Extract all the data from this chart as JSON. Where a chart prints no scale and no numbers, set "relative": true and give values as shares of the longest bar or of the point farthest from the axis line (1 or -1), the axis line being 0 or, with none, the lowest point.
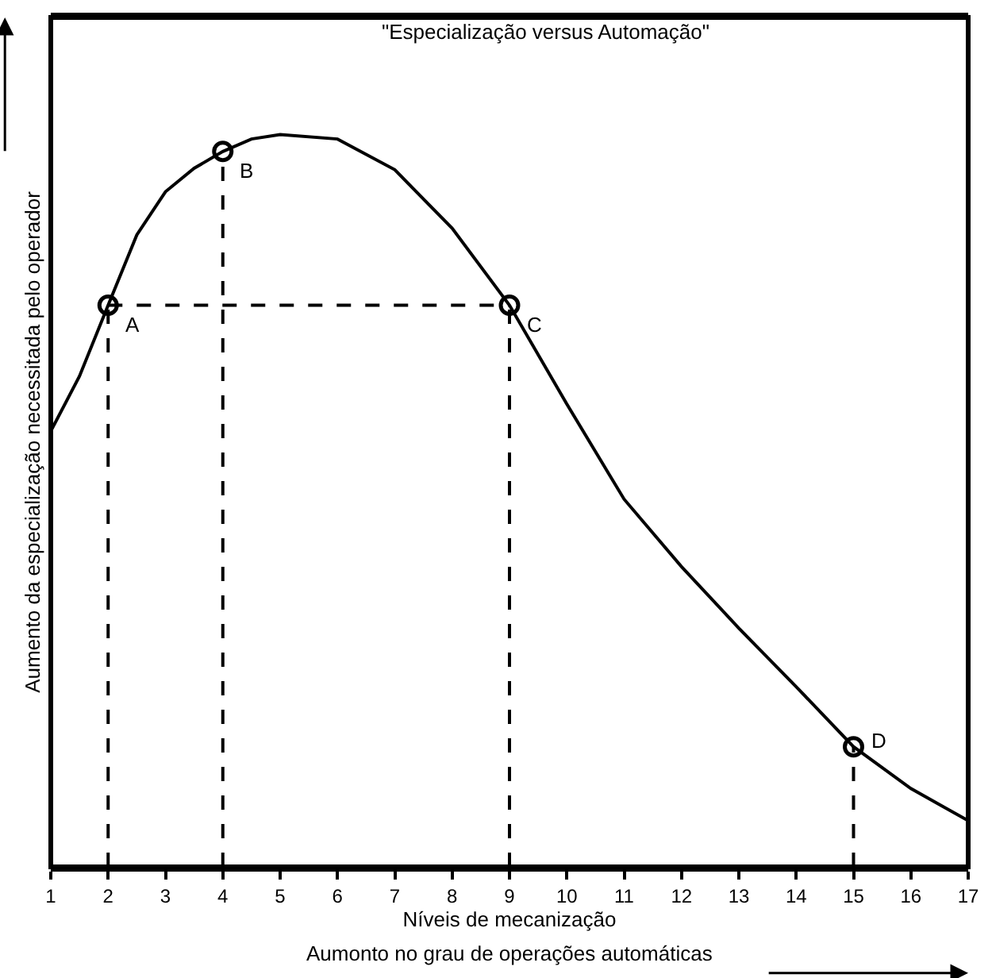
{
  "chart_data": {
    "type": "line",
    "title": "\"Especialização versus Automação\"",
    "xlabel": "Níveis de mecanização",
    "ylabel": "Aumento da especialização necessitada pelo operador",
    "relative": true,
    "xlim": [
      1,
      17
    ],
    "xticks": [
      1,
      2,
      3,
      4,
      5,
      6,
      7,
      8,
      9,
      10,
      11,
      12,
      13,
      14,
      15,
      16,
      17
    ],
    "grid": false,
    "series": [
      {
        "color": "#000000",
        "line_style": "solid",
        "marker": "none",
        "x": [
          1,
          1.5,
          2,
          2.5,
          3,
          3.5,
          4,
          4.5,
          5,
          6,
          7,
          8,
          9,
          10,
          11,
          12,
          13,
          14,
          15,
          16,
          17
        ],
        "values": [
          0.595,
          0.67,
          0.767,
          0.863,
          0.922,
          0.954,
          0.977,
          0.994,
          1.0,
          0.994,
          0.952,
          0.872,
          0.767,
          0.632,
          0.502,
          0.41,
          0.326,
          0.246,
          0.164,
          0.107,
          0.063
        ]
      },
      {
        "type": "line",
        "color": "#000000",
        "line_style": "dashed",
        "marker": "none",
        "x": [
          2,
          9
        ],
        "values": [
          0.767,
          0.767
        ]
      },
      {
        "type": "line",
        "color": "#000000",
        "line_style": "dashed",
        "marker": "none",
        "x": [
          2,
          2
        ],
        "values": [
          0,
          0.767
        ]
      },
      {
        "type": "line",
        "color": "#000000",
        "line_style": "dashed",
        "marker": "none",
        "x": [
          4,
          4
        ],
        "values": [
          0,
          0.977
        ]
      },
      {
        "type": "line",
        "color": "#000000",
        "line_style": "dashed",
        "marker": "none",
        "x": [
          9,
          9
        ],
        "values": [
          0,
          0.767
        ]
      },
      {
        "type": "line",
        "color": "#000000",
        "line_style": "dashed",
        "marker": "none",
        "x": [
          15,
          15
        ],
        "values": [
          0,
          0.164
        ]
      },
      {
        "type": "scatter",
        "color": "#000000",
        "marker": "circle",
        "x": [
          2,
          4,
          9,
          15
        ],
        "values": [
          0.767,
          0.977,
          0.767,
          0.164
        ]
      }
    ],
    "annotations": [
      {
        "text": "A",
        "x": 2,
        "y": 0.767
      },
      {
        "text": "B",
        "x": 4,
        "y": 0.977
      },
      {
        "text": "C",
        "x": 9,
        "y": 0.767
      },
      {
        "text": "D",
        "x": 15,
        "y": 0.164
      },
      "Aumonto no grau de operações automáticas"
    ]
  }
}
